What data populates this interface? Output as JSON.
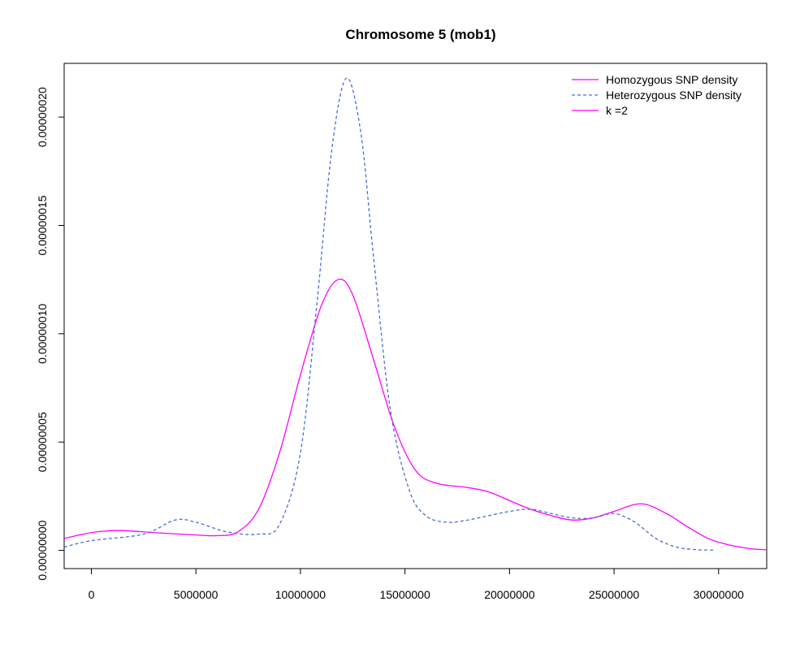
{
  "chart_data": {
    "type": "line",
    "title": "Chromosome 5 (mob1)",
    "xlabel": "",
    "ylabel": "",
    "xlim": [
      -1300000,
      32300000
    ],
    "ylim": [
      -8.4e-09,
      2.248e-07
    ],
    "x_ticks": [
      0,
      5000000,
      10000000,
      15000000,
      20000000,
      25000000,
      30000000
    ],
    "x_tick_labels": [
      "0",
      "5000000",
      "10000000",
      "15000000",
      "20000000",
      "25000000",
      "30000000"
    ],
    "y_ticks": [
      0,
      5e-08,
      1e-07,
      1.5e-07,
      2e-07
    ],
    "y_tick_labels": [
      "0.00000000",
      "0.00000005",
      "0.00000010",
      "0.00000015",
      "0.00000020"
    ],
    "grid": false,
    "legend_position": "top-right",
    "legend": [
      {
        "label": "Homozygous SNP density",
        "color": "#ff00ff",
        "dash": "solid"
      },
      {
        "label": "Heterozygous SNP density",
        "color": "#4a6fd6",
        "dash": "dashed"
      },
      {
        "label": "k =2",
        "color": "#ff00ff",
        "dash": "solid"
      }
    ],
    "series": [
      {
        "name": "Homozygous SNP density",
        "color": "#ff00ff",
        "dash": "solid",
        "x": [
          -1300000,
          0,
          1300000,
          3000000,
          5000000,
          6000000,
          7000000,
          8000000,
          9000000,
          10000000,
          11000000,
          11800000,
          12500000,
          13500000,
          14500000,
          15500000,
          16500000,
          18000000,
          19000000,
          20000000,
          21000000,
          22000000,
          23000000,
          24000000,
          25000000,
          26300000,
          27500000,
          28500000,
          29500000,
          30500000,
          31500000,
          32300000
        ],
        "y": [
          5.5e-09,
          8.2e-09,
          9.2e-09,
          8.2e-09,
          7.1e-09,
          6.8e-09,
          8.5e-09,
          1.9e-08,
          4.5e-08,
          8.1e-08,
          1.13e-07,
          1.25e-07,
          1.18e-07,
          8.8e-08,
          5.7e-08,
          3.7e-08,
          3.1e-08,
          2.9e-08,
          2.7e-08,
          2.3e-08,
          1.9e-08,
          1.6e-08,
          1.4e-08,
          1.5e-08,
          1.8e-08,
          2.15e-08,
          1.7e-08,
          1.1e-08,
          5.5e-09,
          2.5e-09,
          8e-10,
          3e-10
        ]
      },
      {
        "name": "Heterozygous SNP density",
        "color": "#4a6fd6",
        "dash": "dashed",
        "x": [
          -1300000,
          0,
          2500000,
          4000000,
          5000000,
          6500000,
          8000000,
          9000000,
          10000000,
          10800000,
          11500000,
          12200000,
          12900000,
          13500000,
          14300000,
          15200000,
          16000000,
          17000000,
          18000000,
          19000000,
          20000000,
          21000000,
          22000000,
          23000000,
          24000000,
          25000000,
          26000000,
          27000000,
          28000000,
          29000000,
          29800000
        ],
        "y": [
          1.5e-09,
          4.5e-09,
          7.5e-09,
          1.4e-08,
          1.3e-08,
          8.5e-09,
          7.5e-09,
          1.2e-08,
          4.5e-08,
          1.15e-07,
          1.85e-07,
          2.18e-07,
          1.92e-07,
          1.35e-07,
          6.5e-08,
          2.8e-08,
          1.6e-08,
          1.3e-08,
          1.4e-08,
          1.6e-08,
          1.8e-08,
          1.9e-08,
          1.7e-08,
          1.5e-08,
          1.5e-08,
          1.7e-08,
          1.3e-08,
          5.5e-09,
          1.5e-09,
          3e-10,
          2e-10
        ]
      }
    ]
  }
}
